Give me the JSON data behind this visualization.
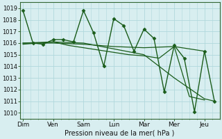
{
  "xlabel": "Pression niveau de la mer( hPa )",
  "bg_color": "#d8eef0",
  "plot_bg_color": "#d8eef0",
  "grid_color": "#b0d8dc",
  "line_color": "#1a5c1a",
  "ylim": [
    1009.5,
    1019.5
  ],
  "yticks": [
    1010,
    1011,
    1012,
    1013,
    1014,
    1015,
    1016,
    1017,
    1018,
    1019
  ],
  "day_labels": [
    "Dim",
    "Ven",
    "Sam",
    "Lun",
    "Mar",
    "Mer",
    "Jeu"
  ],
  "day_positions": [
    0,
    1,
    2,
    3,
    4,
    5,
    6
  ],
  "xlim": [
    -0.1,
    6.5
  ],
  "series": [
    {
      "x": [
        0.0,
        0.33,
        0.67,
        1.0,
        1.33,
        1.67,
        2.0,
        2.33,
        2.67,
        3.0,
        3.33,
        3.67,
        4.0,
        4.33,
        4.67,
        5.0,
        5.33,
        5.67,
        6.0,
        6.33
      ],
      "y": [
        1018.8,
        1016.0,
        1015.9,
        1016.3,
        1016.3,
        1016.1,
        1018.8,
        1016.9,
        1014.0,
        1018.1,
        1017.5,
        1015.3,
        1017.2,
        1016.4,
        1011.8,
        1015.8,
        1014.7,
        1010.1,
        1015.3,
        1011.0
      ],
      "marker": "D",
      "ms": 2.5,
      "lw": 1.0
    },
    {
      "x": [
        0.0,
        1.0,
        2.0,
        3.0,
        4.0,
        5.0,
        6.0
      ],
      "y": [
        1016.0,
        1016.0,
        1015.9,
        1015.7,
        1015.6,
        1015.7,
        1015.3
      ],
      "marker": null,
      "ms": 0,
      "lw": 0.9
    },
    {
      "x": [
        0.0,
        0.5,
        1.0,
        1.5,
        2.0,
        2.5,
        3.0,
        3.5,
        4.0,
        4.5,
        5.0,
        5.5,
        6.0
      ],
      "y": [
        1015.9,
        1016.0,
        1016.1,
        1015.8,
        1015.6,
        1015.4,
        1015.2,
        1015.0,
        1014.9,
        1014.7,
        1015.7,
        1011.4,
        1011.1
      ],
      "marker": null,
      "ms": 0,
      "lw": 0.9
    },
    {
      "x": [
        0.0,
        1.0,
        2.0,
        3.0,
        4.0,
        5.0,
        6.0,
        6.33
      ],
      "y": [
        1016.0,
        1016.1,
        1016.0,
        1015.5,
        1015.0,
        1013.0,
        1011.2,
        1011.0
      ],
      "marker": null,
      "ms": 0,
      "lw": 0.9
    }
  ]
}
